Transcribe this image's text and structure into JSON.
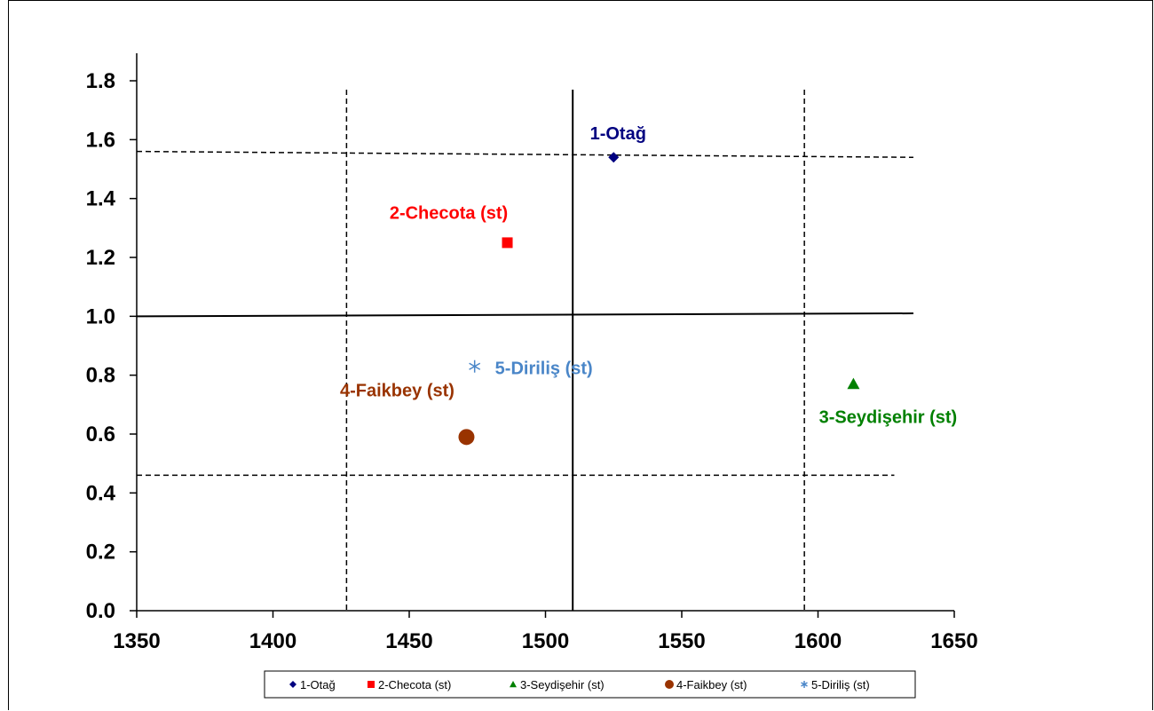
{
  "chart_data": {
    "type": "scatter",
    "title": "",
    "xlabel": "",
    "ylabel": "",
    "xlim": [
      1350,
      1650
    ],
    "ylim": [
      0.0,
      1.8
    ],
    "x_ticks": [
      "1350",
      "1400",
      "1450",
      "1500",
      "1550",
      "1600",
      "1650"
    ],
    "y_ticks": [
      "0.0",
      "0.2",
      "0.4",
      "0.6",
      "0.8",
      "1.0",
      "1.2",
      "1.4",
      "1.6",
      "1.8"
    ],
    "grid": false,
    "legend_position": "bottom",
    "series": [
      {
        "name": "1-Otağ",
        "x": 1525,
        "y": 1.54,
        "marker": "diamond",
        "color": "#000080",
        "label_bold": true
      },
      {
        "name": "2-Checota (st)",
        "x": 1486,
        "y": 1.25,
        "marker": "square",
        "color": "#ff0000",
        "label_bold": true
      },
      {
        "name": "3-Seydişehir (st)",
        "x": 1613,
        "y": 0.77,
        "marker": "triangle",
        "color": "#008000",
        "label_bold": true
      },
      {
        "name": "4-Faikbey (st)",
        "x": 1471,
        "y": 0.59,
        "marker": "circle",
        "color": "#993300",
        "label_bold": true
      },
      {
        "name": "5-Diriliş (st)",
        "x": 1474,
        "y": 0.83,
        "marker": "asterisk",
        "color": "#4a86c8",
        "label_bold": false
      }
    ],
    "reference_lines": [
      {
        "orientation": "vertical",
        "x": 1427,
        "style": "dashed"
      },
      {
        "orientation": "vertical",
        "x": 1510,
        "style": "solid"
      },
      {
        "orientation": "vertical",
        "x": 1595,
        "style": "dashed"
      },
      {
        "orientation": "horizontal",
        "y_start": 1.56,
        "y_end": 1.54,
        "style": "dashed"
      },
      {
        "orientation": "horizontal",
        "y_start": 1.0,
        "y_end": 1.01,
        "style": "solid"
      },
      {
        "orientation": "horizontal",
        "y_start": 0.46,
        "y_end": 0.46,
        "style": "dashed"
      }
    ]
  }
}
